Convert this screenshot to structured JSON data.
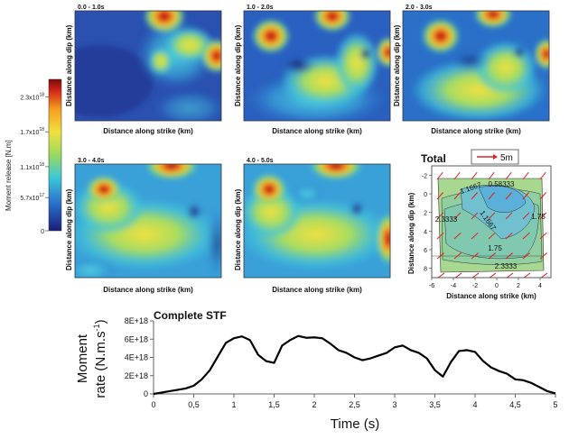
{
  "colorbar": {
    "label": "Moment release [N.m]",
    "ticks": [
      {
        "base": "2.3x10",
        "exp": "18",
        "value": 2.3e+18
      },
      {
        "base": "1.7x10",
        "exp": "18",
        "value": 1.7e+18
      },
      {
        "base": "1.1x10",
        "exp": "18",
        "value": 1.1e+18
      },
      {
        "base": "5.7x10",
        "exp": "17",
        "value": 5.7e+17
      },
      {
        "base": "0",
        "exp": "",
        "value": 0
      }
    ],
    "colors": [
      "#7a0a0a",
      "#d42a1a",
      "#f4a020",
      "#f0e040",
      "#9ad860",
      "#3cc8d8",
      "#2a70c8",
      "#1a1e78"
    ]
  },
  "snapshots": [
    {
      "title": "0.0 - 1.0s",
      "xlabel": "Distance along strike (km)",
      "ylabel": "Distance along dip (km)"
    },
    {
      "title": "1.0 - 2.0s",
      "xlabel": "Distance along strike (km)",
      "ylabel": "Distance along dip (km)"
    },
    {
      "title": "2.0 - 3.0s",
      "xlabel": "Distance along strike (km)",
      "ylabel": "Distance along dip (km)"
    },
    {
      "title": "3.0 - 4.0s",
      "xlabel": "Distance along strike (km)",
      "ylabel": "Distance along dip (km)"
    },
    {
      "title": "4.0 - 5.0s",
      "xlabel": "Distance along strike (km)",
      "ylabel": "Distance along dip (km)"
    }
  ],
  "total": {
    "title": "Total",
    "legend": "5m",
    "xlabel": "Distance along strike (km)",
    "ylabel": "Distance along dip (km)",
    "xticks": [
      "-6",
      "-4",
      "-2",
      "0",
      "2",
      "4"
    ],
    "yticks": [
      "-2",
      "0",
      "2",
      "4",
      "6",
      "8"
    ],
    "contour_labels": [
      "1.1667",
      "0.58333",
      "2.3333",
      "1.1667",
      "1.75",
      "1.75",
      "2.3333"
    ],
    "arrow_color": "#e02020"
  },
  "chart_data": {
    "type": "line",
    "title": "Complete STF",
    "xlabel": "Time (s)",
    "ylabel_line1": "Moment",
    "ylabel_line2": "rate (N.m.s",
    "ylabel_sup": "-1",
    "ylabel_end": ")",
    "xlim": [
      0,
      5
    ],
    "ylim": [
      0,
      8e+18
    ],
    "xticks": [
      {
        "v": 0,
        "t": "0"
      },
      {
        "v": 0.5,
        "t": "0,5"
      },
      {
        "v": 1,
        "t": "1"
      },
      {
        "v": 1.5,
        "t": "1,5"
      },
      {
        "v": 2,
        "t": "2"
      },
      {
        "v": 2.5,
        "t": "2,5"
      },
      {
        "v": 3,
        "t": "3"
      },
      {
        "v": 3.5,
        "t": "3,5"
      },
      {
        "v": 4,
        "t": "4"
      },
      {
        "v": 4.5,
        "t": "4,5"
      },
      {
        "v": 5,
        "t": "5"
      }
    ],
    "yticks": [
      {
        "v": 0,
        "t": "0"
      },
      {
        "v": 2e+18,
        "t": "2E+18"
      },
      {
        "v": 4e+18,
        "t": "4E+18"
      },
      {
        "v": 6e+18,
        "t": "6E+18"
      },
      {
        "v": 8e+18,
        "t": "8E+18"
      }
    ],
    "series": [
      {
        "x": [
          0,
          0.1,
          0.2,
          0.3,
          0.4,
          0.5,
          0.6,
          0.7,
          0.8,
          0.9,
          1.0,
          1.1,
          1.2,
          1.3,
          1.4,
          1.5,
          1.6,
          1.7,
          1.8,
          1.9,
          2.0,
          2.1,
          2.2,
          2.3,
          2.4,
          2.5,
          2.6,
          2.7,
          2.8,
          2.9,
          3.0,
          3.1,
          3.2,
          3.3,
          3.4,
          3.5,
          3.6,
          3.7,
          3.8,
          3.9,
          4.0,
          4.1,
          4.2,
          4.3,
          4.4,
          4.5,
          4.6,
          4.7,
          4.8,
          4.9,
          5.0
        ],
        "y": [
          0,
          1.5e+17,
          3e+17,
          4.5e+17,
          6e+17,
          9e+17,
          1.6e+18,
          2.6e+18,
          4.1e+18,
          5.6e+18,
          6.1e+18,
          6.3e+18,
          5.9e+18,
          4.3e+18,
          3.6e+18,
          3.4e+18,
          5.3e+18,
          5.9e+18,
          6.35e+18,
          6.15e+18,
          6.2e+18,
          6.1e+18,
          5.5e+18,
          4.8e+18,
          4.5e+18,
          4e+18,
          3.7e+18,
          3.9e+18,
          4.2e+18,
          4.5e+18,
          5.1e+18,
          5.3e+18,
          4.8e+18,
          4.5e+18,
          3.9e+18,
          2.6e+18,
          1.9e+18,
          3.5e+18,
          4.7e+18,
          4.8e+18,
          4.6e+18,
          3.6e+18,
          2.9e+18,
          2.5e+18,
          2.2e+18,
          1.6e+18,
          1.5e+18,
          1.2e+18,
          7.5e+17,
          3e+17,
          5e+16
        ]
      }
    ],
    "grid": false
  }
}
